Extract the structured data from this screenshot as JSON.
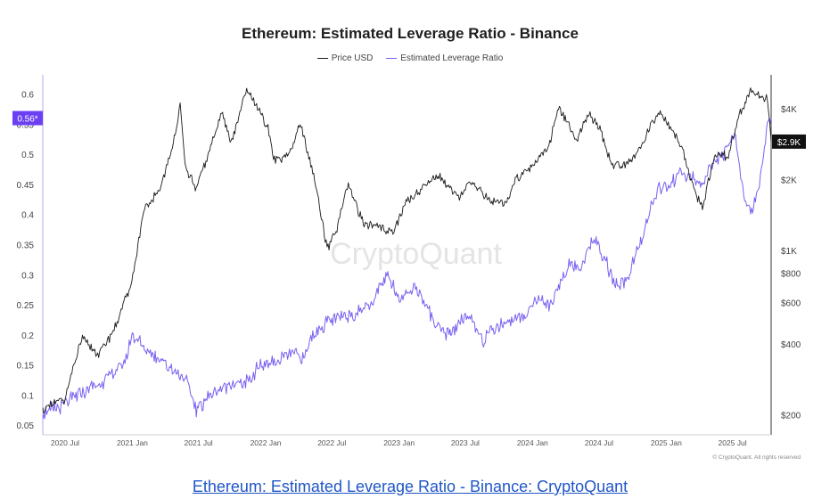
{
  "caption": "Ethereum: Estimated Leverage Ratio - Binance: CryptoQuant",
  "copyright": "© CryptoQuant. All rights reserved",
  "watermark": "CryptoQuant",
  "colors": {
    "price": "#1a1a1a",
    "ratio": "#7b61f0",
    "badge_ratio": "#6b3ff2",
    "badge_price": "#111111"
  },
  "chart_data": {
    "type": "line",
    "title": "Ethereum: Estimated Leverage Ratio - Binance",
    "legend_position": "top-center",
    "grid": false,
    "x_ticks": [
      "2020 Jul",
      "2021 Jan",
      "2021 Jul",
      "2022 Jan",
      "2022 Jul",
      "2023 Jan",
      "2023 Jul",
      "2024 Jan",
      "2024 Jul",
      "2025 Jan",
      "2025 Jul"
    ],
    "x_range": [
      "2020-05-01",
      "2025-10-15"
    ],
    "left_axis": {
      "ticks": [
        0.05,
        0.1,
        0.15,
        0.2,
        0.25,
        0.3,
        0.35,
        0.4,
        0.45,
        0.5,
        0.55,
        0.6
      ],
      "ylim": [
        0.04,
        0.62
      ]
    },
    "right_axis": {
      "scale": "log",
      "ticks": [
        200,
        400,
        600,
        800,
        1000,
        2000,
        4000
      ],
      "tick_labels": [
        "$200",
        "$400",
        "$600",
        "$800",
        "$1K",
        "$2K",
        "$4K"
      ],
      "ylim": [
        170,
        5200
      ]
    },
    "current_badges": {
      "ratio": "0.56*",
      "price": "$2.9K",
      "ratio_value": 0.56,
      "price_value": 2900
    },
    "series": [
      {
        "name": "Price USD",
        "axis": "right",
        "points": [
          [
            "2020-05-01",
            210
          ],
          [
            "2020-07-01",
            235
          ],
          [
            "2020-08-15",
            420
          ],
          [
            "2020-10-01",
            360
          ],
          [
            "2020-11-15",
            470
          ],
          [
            "2020-12-31",
            740
          ],
          [
            "2021-02-01",
            1450
          ],
          [
            "2021-03-15",
            1800
          ],
          [
            "2021-04-15",
            2500
          ],
          [
            "2021-05-12",
            4150
          ],
          [
            "2021-05-25",
            2300
          ],
          [
            "2021-06-25",
            1800
          ],
          [
            "2021-08-01",
            2700
          ],
          [
            "2021-09-05",
            3900
          ],
          [
            "2021-09-28",
            2850
          ],
          [
            "2021-11-10",
            4800
          ],
          [
            "2021-12-15",
            3900
          ],
          [
            "2022-01-10",
            3200
          ],
          [
            "2022-01-25",
            2400
          ],
          [
            "2022-03-10",
            2600
          ],
          [
            "2022-04-05",
            3500
          ],
          [
            "2022-05-15",
            2000
          ],
          [
            "2022-06-18",
            1000
          ],
          [
            "2022-07-15",
            1250
          ],
          [
            "2022-08-15",
            1900
          ],
          [
            "2022-09-25",
            1300
          ],
          [
            "2022-11-10",
            1250
          ],
          [
            "2022-12-15",
            1200
          ],
          [
            "2023-01-20",
            1600
          ],
          [
            "2023-04-15",
            2100
          ],
          [
            "2023-06-15",
            1700
          ],
          [
            "2023-07-15",
            1950
          ],
          [
            "2023-09-15",
            1600
          ],
          [
            "2023-10-20",
            1600
          ],
          [
            "2023-11-15",
            2000
          ],
          [
            "2024-01-01",
            2300
          ],
          [
            "2024-02-15",
            2800
          ],
          [
            "2024-03-12",
            4000
          ],
          [
            "2024-05-01",
            2950
          ],
          [
            "2024-06-01",
            3800
          ],
          [
            "2024-07-01",
            3400
          ],
          [
            "2024-08-05",
            2300
          ],
          [
            "2024-09-05",
            2300
          ],
          [
            "2024-10-15",
            2600
          ],
          [
            "2024-12-10",
            3900
          ],
          [
            "2025-01-15",
            3300
          ],
          [
            "2025-02-15",
            2700
          ],
          [
            "2025-03-10",
            2000
          ],
          [
            "2025-04-10",
            1500
          ],
          [
            "2025-05-15",
            2600
          ],
          [
            "2025-06-20",
            2500
          ],
          [
            "2025-07-20",
            3800
          ],
          [
            "2025-08-20",
            4700
          ],
          [
            "2025-09-15",
            4500
          ],
          [
            "2025-10-05",
            4400
          ],
          [
            "2025-10-15",
            2900
          ]
        ]
      },
      {
        "name": "Estimated Leverage Ratio",
        "axis": "left",
        "points": [
          [
            "2020-05-01",
            0.07
          ],
          [
            "2020-07-01",
            0.085
          ],
          [
            "2020-09-01",
            0.11
          ],
          [
            "2020-11-01",
            0.13
          ],
          [
            "2020-12-15",
            0.16
          ],
          [
            "2021-01-01",
            0.2
          ],
          [
            "2021-02-01",
            0.18
          ],
          [
            "2021-03-15",
            0.16
          ],
          [
            "2021-05-01",
            0.14
          ],
          [
            "2021-06-01",
            0.12
          ],
          [
            "2021-06-25",
            0.075
          ],
          [
            "2021-08-01",
            0.1
          ],
          [
            "2021-10-01",
            0.12
          ],
          [
            "2021-11-15",
            0.12
          ],
          [
            "2021-12-15",
            0.15
          ],
          [
            "2022-02-01",
            0.155
          ],
          [
            "2022-03-15",
            0.17
          ],
          [
            "2022-04-15",
            0.16
          ],
          [
            "2022-05-10",
            0.2
          ],
          [
            "2022-06-15",
            0.22
          ],
          [
            "2022-08-01",
            0.23
          ],
          [
            "2022-09-15",
            0.24
          ],
          [
            "2022-10-25",
            0.26
          ],
          [
            "2022-12-01",
            0.3
          ],
          [
            "2023-01-01",
            0.26
          ],
          [
            "2023-02-15",
            0.28
          ],
          [
            "2023-03-15",
            0.25
          ],
          [
            "2023-04-15",
            0.21
          ],
          [
            "2023-05-15",
            0.2
          ],
          [
            "2023-06-15",
            0.22
          ],
          [
            "2023-07-15",
            0.23
          ],
          [
            "2023-08-20",
            0.19
          ],
          [
            "2023-09-15",
            0.21
          ],
          [
            "2023-10-15",
            0.22
          ],
          [
            "2023-12-01",
            0.23
          ],
          [
            "2024-01-15",
            0.26
          ],
          [
            "2024-02-15",
            0.25
          ],
          [
            "2024-03-15",
            0.28
          ],
          [
            "2024-04-10",
            0.32
          ],
          [
            "2024-05-15",
            0.31
          ],
          [
            "2024-06-15",
            0.36
          ],
          [
            "2024-07-15",
            0.33
          ],
          [
            "2024-08-15",
            0.28
          ],
          [
            "2024-09-15",
            0.29
          ],
          [
            "2024-10-15",
            0.34
          ],
          [
            "2024-11-15",
            0.4
          ],
          [
            "2024-12-10",
            0.44
          ],
          [
            "2025-01-10",
            0.45
          ],
          [
            "2025-02-10",
            0.47
          ],
          [
            "2025-03-10",
            0.46
          ],
          [
            "2025-04-10",
            0.45
          ],
          [
            "2025-05-10",
            0.49
          ],
          [
            "2025-06-10",
            0.5
          ],
          [
            "2025-07-10",
            0.53
          ],
          [
            "2025-08-01",
            0.43
          ],
          [
            "2025-08-20",
            0.4
          ],
          [
            "2025-09-10",
            0.44
          ],
          [
            "2025-10-05",
            0.55
          ],
          [
            "2025-10-15",
            0.56
          ]
        ]
      }
    ]
  }
}
